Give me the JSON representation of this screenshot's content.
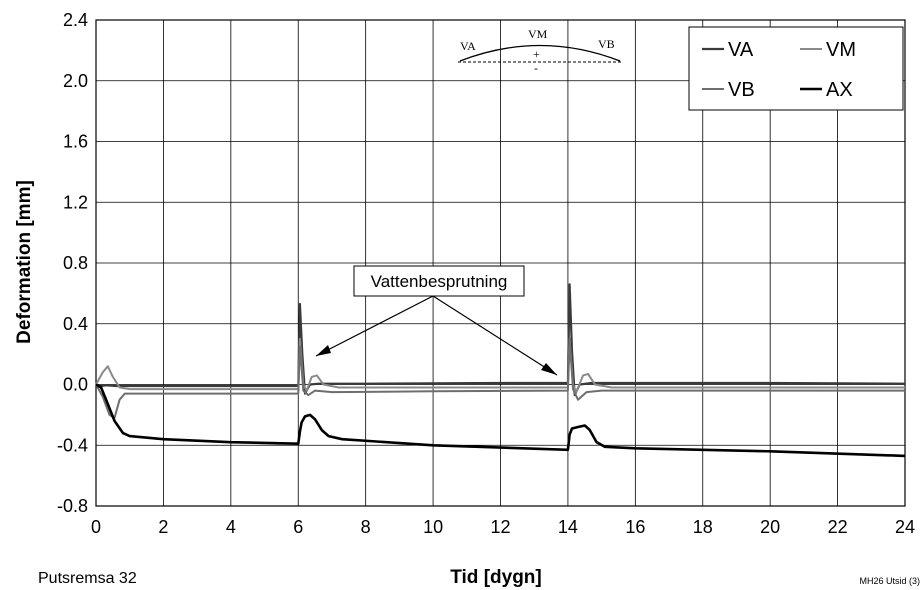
{
  "chart_data": {
    "type": "line",
    "xlabel": "Tid [dygn]",
    "ylabel": "Deformation [mm]",
    "xlim": [
      0,
      24
    ],
    "ylim": [
      -0.8,
      2.4
    ],
    "x_ticks": [
      "0",
      "2",
      "4",
      "6",
      "8",
      "10",
      "12",
      "14",
      "16",
      "18",
      "20",
      "22",
      "24"
    ],
    "y_ticks": [
      "2.4",
      "2.0",
      "1.6",
      "1.2",
      "0.8",
      "0.4",
      "0.0",
      "-0.4",
      "-0.8"
    ],
    "x_tick_values": [
      0,
      2,
      4,
      6,
      8,
      10,
      12,
      14,
      16,
      18,
      20,
      22,
      24
    ],
    "y_tick_values": [
      2.4,
      2.0,
      1.6,
      1.2,
      0.8,
      0.4,
      0.0,
      -0.4,
      -0.8
    ],
    "grid": true,
    "legend_position": "top-right",
    "series": [
      {
        "name": "VA",
        "color": "#3a3a3a",
        "width": 2.2,
        "points": [
          [
            0,
            0
          ],
          [
            0.15,
            -0.01
          ],
          [
            0.3,
            -0.005
          ],
          [
            0.6,
            -0.01
          ],
          [
            1,
            -0.01
          ],
          [
            3,
            -0.01
          ],
          [
            6,
            -0.01
          ],
          [
            6.05,
            0.53
          ],
          [
            6.12,
            0.2
          ],
          [
            6.2,
            -0.06
          ],
          [
            6.35,
            0.0
          ],
          [
            6.6,
            0.005
          ],
          [
            8,
            0.005
          ],
          [
            12,
            0.01
          ],
          [
            14,
            0.01
          ],
          [
            14.05,
            0.66
          ],
          [
            14.12,
            0.22
          ],
          [
            14.2,
            -0.07
          ],
          [
            14.35,
            0.0
          ],
          [
            14.7,
            0.01
          ],
          [
            16,
            0.01
          ],
          [
            20,
            0.01
          ],
          [
            24,
            0.005
          ]
        ]
      },
      {
        "name": "VM",
        "color": "#8a8a8a",
        "width": 2.0,
        "points": [
          [
            0,
            0
          ],
          [
            0.2,
            0.08
          ],
          [
            0.35,
            0.12
          ],
          [
            0.5,
            0.05
          ],
          [
            0.7,
            -0.02
          ],
          [
            1,
            -0.03
          ],
          [
            3,
            -0.03
          ],
          [
            6,
            -0.03
          ],
          [
            6.05,
            0.3
          ],
          [
            6.15,
            0.0
          ],
          [
            6.25,
            -0.04
          ],
          [
            6.4,
            0.05
          ],
          [
            6.55,
            0.06
          ],
          [
            6.75,
            0.0
          ],
          [
            7.2,
            -0.02
          ],
          [
            10,
            -0.02
          ],
          [
            14,
            -0.02
          ],
          [
            14.05,
            0.3
          ],
          [
            14.15,
            0.0
          ],
          [
            14.25,
            -0.05
          ],
          [
            14.45,
            0.06
          ],
          [
            14.6,
            0.07
          ],
          [
            14.8,
            0.0
          ],
          [
            15.3,
            -0.02
          ],
          [
            20,
            -0.02
          ],
          [
            24,
            -0.02
          ]
        ]
      },
      {
        "name": "VB",
        "color": "#6e6e6e",
        "width": 2.0,
        "points": [
          [
            0,
            0
          ],
          [
            0.2,
            -0.08
          ],
          [
            0.4,
            -0.2
          ],
          [
            0.55,
            -0.22
          ],
          [
            0.7,
            -0.1
          ],
          [
            0.85,
            -0.06
          ],
          [
            1.5,
            -0.06
          ],
          [
            4,
            -0.06
          ],
          [
            6,
            -0.06
          ],
          [
            6.05,
            0.25
          ],
          [
            6.15,
            -0.04
          ],
          [
            6.3,
            -0.07
          ],
          [
            6.5,
            -0.04
          ],
          [
            7,
            -0.05
          ],
          [
            10,
            -0.045
          ],
          [
            14,
            -0.04
          ],
          [
            14.05,
            0.3
          ],
          [
            14.15,
            -0.03
          ],
          [
            14.3,
            -0.1
          ],
          [
            14.55,
            -0.05
          ],
          [
            15,
            -0.04
          ],
          [
            20,
            -0.04
          ],
          [
            24,
            -0.04
          ]
        ]
      },
      {
        "name": "AX",
        "color": "#000000",
        "width": 2.6,
        "points": [
          [
            0,
            0
          ],
          [
            0.15,
            -0.02
          ],
          [
            0.3,
            -0.1
          ],
          [
            0.55,
            -0.24
          ],
          [
            0.8,
            -0.32
          ],
          [
            1.0,
            -0.34
          ],
          [
            2,
            -0.36
          ],
          [
            4,
            -0.38
          ],
          [
            6,
            -0.39
          ],
          [
            6.05,
            -0.31
          ],
          [
            6.1,
            -0.25
          ],
          [
            6.2,
            -0.21
          ],
          [
            6.35,
            -0.2
          ],
          [
            6.5,
            -0.23
          ],
          [
            6.7,
            -0.3
          ],
          [
            6.9,
            -0.34
          ],
          [
            7.3,
            -0.36
          ],
          [
            10,
            -0.4
          ],
          [
            14,
            -0.43
          ],
          [
            14.05,
            -0.33
          ],
          [
            14.12,
            -0.29
          ],
          [
            14.3,
            -0.28
          ],
          [
            14.5,
            -0.27
          ],
          [
            14.65,
            -0.3
          ],
          [
            14.85,
            -0.38
          ],
          [
            15.1,
            -0.41
          ],
          [
            16,
            -0.42
          ],
          [
            20,
            -0.44
          ],
          [
            24,
            -0.47
          ]
        ]
      }
    ],
    "annotation": "Vattenbesprutning",
    "inset": {
      "labels": [
        "VA",
        "VM",
        "VB"
      ],
      "sign_plus": "+",
      "sign_minus": "-"
    }
  },
  "footer": {
    "left": "Putsremsa 32",
    "right": "MH26 Utsid (3)"
  }
}
